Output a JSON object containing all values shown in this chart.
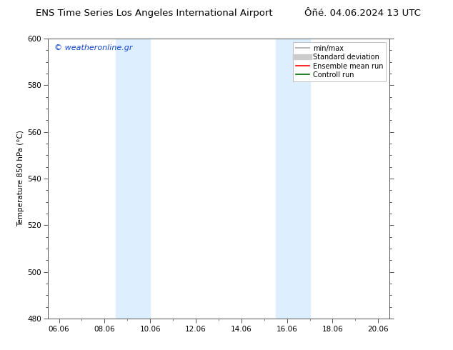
{
  "title_left": "ENS Time Series Los Angeles International Airport",
  "title_right": "Ôñé. 04.06.2024 13 UTC",
  "ylabel": "Temperature 850 hPa (°C)",
  "xlim_start": 5.5,
  "xlim_end": 20.5,
  "ylim_bottom": 480,
  "ylim_top": 600,
  "yticks": [
    480,
    500,
    520,
    540,
    560,
    580,
    600
  ],
  "xtick_labels": [
    "06.06",
    "08.06",
    "10.06",
    "12.06",
    "14.06",
    "16.06",
    "18.06",
    "20.06"
  ],
  "xtick_positions": [
    6,
    8,
    10,
    12,
    14,
    16,
    18,
    20
  ],
  "shaded_bands": [
    {
      "xmin": 8.5,
      "xmax": 10.0,
      "color": "#ddeeff"
    },
    {
      "xmin": 15.5,
      "xmax": 17.0,
      "color": "#ddeeff"
    }
  ],
  "watermark": "© weatheronline.gr",
  "watermark_color": "#1144cc",
  "legend_items": [
    {
      "label": "min/max",
      "color": "#bbbbbb",
      "lw": 1.5,
      "style": "solid"
    },
    {
      "label": "Standard deviation",
      "color": "#cccccc",
      "lw": 6,
      "style": "solid"
    },
    {
      "label": "Ensemble mean run",
      "color": "#ff0000",
      "lw": 1.2,
      "style": "solid"
    },
    {
      "label": "Controll run",
      "color": "#006600",
      "lw": 1.2,
      "style": "solid"
    }
  ],
  "bg_color": "#ffffff",
  "plot_bg_color": "#ffffff",
  "border_color": "#555555",
  "tick_color": "#555555",
  "label_fontsize": 7.5,
  "title_fontsize": 9.5,
  "watermark_fontsize": 8,
  "legend_fontsize": 7
}
